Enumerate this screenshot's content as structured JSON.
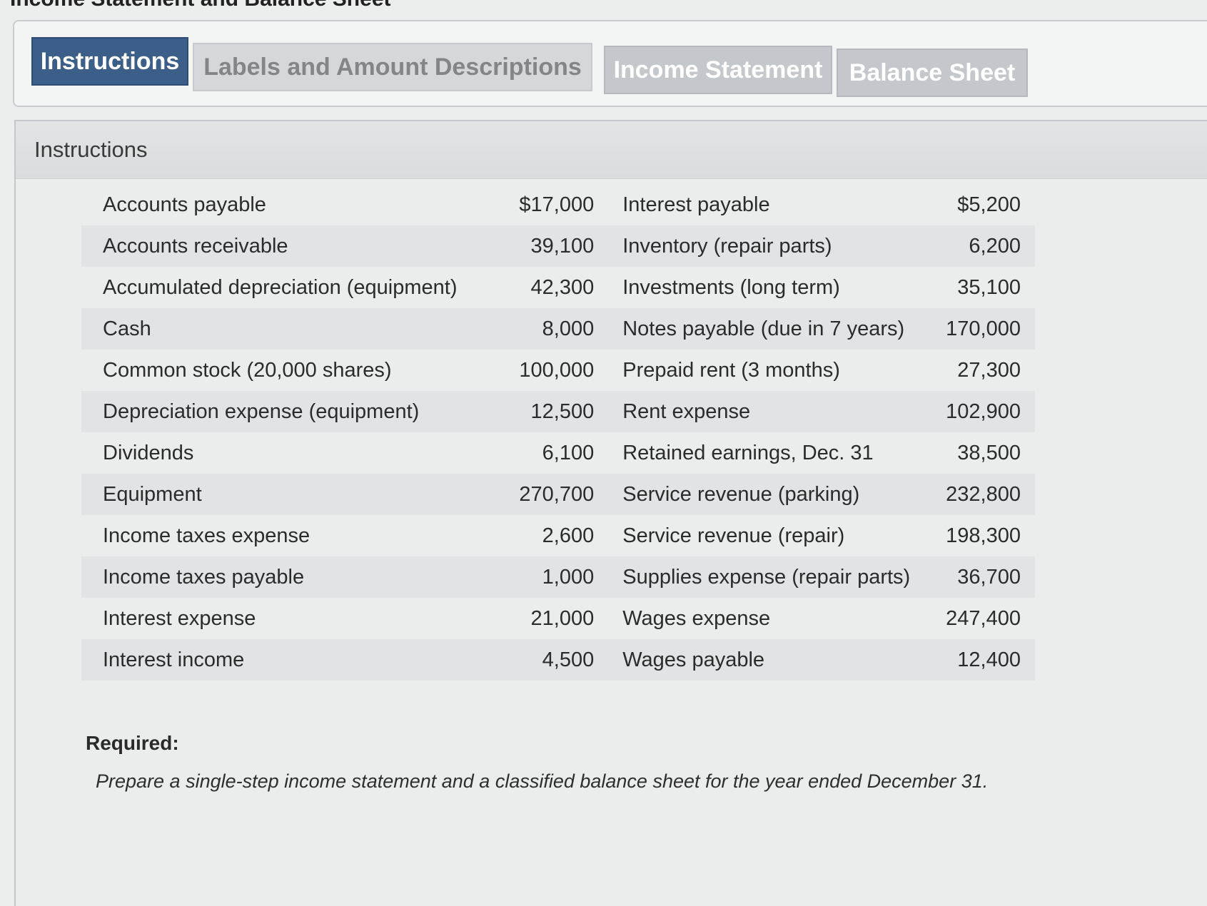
{
  "page": {
    "heading": "Income Statement and Balance Sheet"
  },
  "tabs": [
    {
      "label": "Instructions"
    },
    {
      "label": "Labels and Amount Descriptions"
    },
    {
      "label": "Income Statement"
    },
    {
      "label": "Balance Sheet"
    }
  ],
  "panel": {
    "title": "Instructions"
  },
  "accounts": [
    {
      "left_label": "Accounts payable",
      "left_amount": "$17,000",
      "right_label": "Interest payable",
      "right_amount": "$5,200"
    },
    {
      "left_label": "Accounts receivable",
      "left_amount": "39,100",
      "right_label": "Inventory (repair parts)",
      "right_amount": "6,200"
    },
    {
      "left_label": "Accumulated depreciation (equipment)",
      "left_amount": "42,300",
      "right_label": "Investments (long term)",
      "right_amount": "35,100"
    },
    {
      "left_label": "Cash",
      "left_amount": "8,000",
      "right_label": "Notes payable (due in 7 years)",
      "right_amount": "170,000"
    },
    {
      "left_label": "Common stock (20,000 shares)",
      "left_amount": "100,000",
      "right_label": "Prepaid rent (3 months)",
      "right_amount": "27,300"
    },
    {
      "left_label": "Depreciation expense (equipment)",
      "left_amount": "12,500",
      "right_label": "Rent expense",
      "right_amount": "102,900"
    },
    {
      "left_label": "Dividends",
      "left_amount": "6,100",
      "right_label": "Retained earnings, Dec. 31",
      "right_amount": "38,500"
    },
    {
      "left_label": "Equipment",
      "left_amount": "270,700",
      "right_label": "Service revenue (parking)",
      "right_amount": "232,800"
    },
    {
      "left_label": "Income taxes expense",
      "left_amount": "2,600",
      "right_label": "Service revenue (repair)",
      "right_amount": "198,300"
    },
    {
      "left_label": "Income taxes payable",
      "left_amount": "1,000",
      "right_label": "Supplies expense (repair parts)",
      "right_amount": "36,700"
    },
    {
      "left_label": "Interest expense",
      "left_amount": "21,000",
      "right_label": "Wages expense",
      "right_amount": "247,400"
    },
    {
      "left_label": "Interest income",
      "left_amount": "4,500",
      "right_label": "Wages payable",
      "right_amount": "12,400"
    }
  ],
  "required": {
    "title": "Required:",
    "text": "Prepare a single-step income statement and a classified balance sheet for the year ended December 31."
  }
}
